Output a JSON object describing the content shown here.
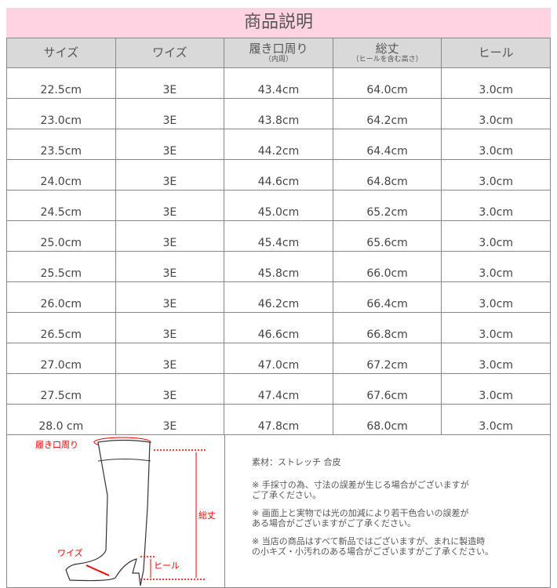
{
  "title": "商品説明",
  "headers": [
    {
      "label": "サイズ",
      "sub": ""
    },
    {
      "label": "ワイズ",
      "sub": ""
    },
    {
      "label": "履き口周り",
      "sub": "（内周）"
    },
    {
      "label": "総丈",
      "sub": "（ヒールを含む高さ）"
    },
    {
      "label": "ヒール",
      "sub": ""
    }
  ],
  "rows": [
    [
      "22.5cm",
      "3E",
      "43.4cm",
      "64.0cm",
      "3.0cm"
    ],
    [
      "23.0cm",
      "3E",
      "43.8cm",
      "64.2cm",
      "3.0cm"
    ],
    [
      "23.5cm",
      "3E",
      "44.2cm",
      "64.4cm",
      "3.0cm"
    ],
    [
      "24.0cm",
      "3E",
      "44.6cm",
      "64.8cm",
      "3.0cm"
    ],
    [
      "24.5cm",
      "3E",
      "45.0cm",
      "65.2cm",
      "3.0cm"
    ],
    [
      "25.0cm",
      "3E",
      "45.4cm",
      "65.6cm",
      "3.0cm"
    ],
    [
      "25.5cm",
      "3E",
      "45.8cm",
      "66.0cm",
      "3.0cm"
    ],
    [
      "26.0cm",
      "3E",
      "46.2cm",
      "66.4cm",
      "3.0cm"
    ],
    [
      "26.5cm",
      "3E",
      "46.6cm",
      "66.8cm",
      "3.0cm"
    ],
    [
      "27.0cm",
      "3E",
      "47.0cm",
      "67.2cm",
      "3.0cm"
    ],
    [
      "27.5cm",
      "3E",
      "47.4cm",
      "67.6cm",
      "3.0cm"
    ],
    [
      "28.0 cm",
      "3E",
      "47.8cm",
      "68.0cm",
      "3.0cm"
    ]
  ],
  "diagram": {
    "opening": "履き口周り",
    "total": "総丈",
    "width": "ワイズ",
    "heel": "ヒール",
    "accent": "#e00000"
  },
  "notes": {
    "material": "素材：ストレッチ 合皮",
    "items": [
      [
        "※ 手採寸の為、寸法の誤差が生じる場合がございますが",
        "ご了承ください。"
      ],
      [
        "※ 画面上と実物では光の加減により若干色合いの誤差が",
        "ある場合がございますがご了承ください。"
      ],
      [
        "※ 当店の商品はすべて新品ではございますが、まれに製造時",
        "の小キズ・小汚れのある場合がございますがご了承ください。"
      ]
    ]
  }
}
